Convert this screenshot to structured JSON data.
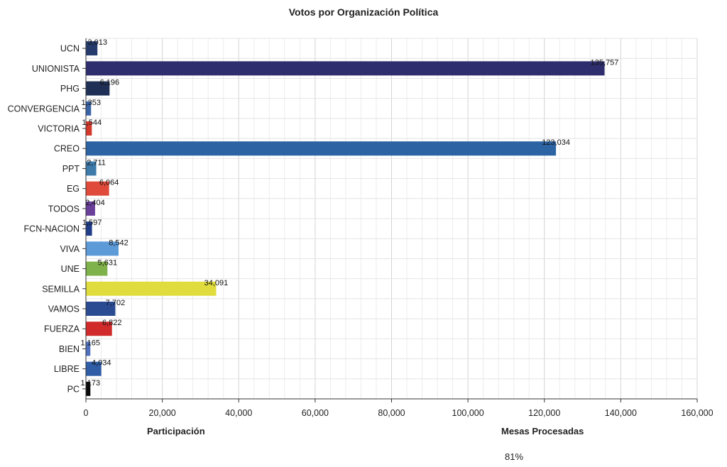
{
  "chart_data": {
    "type": "bar",
    "orientation": "horizontal",
    "title": "Votos por Organización Política",
    "categories": [
      "UCN",
      "UNIONISTA",
      "PHG",
      "CONVERGENCIA",
      "VICTORIA",
      "CREO",
      "PPT",
      "EG",
      "TODOS",
      "FCN-NACION",
      "VIVA",
      "UNE",
      "SEMILLA",
      "VAMOS",
      "FUERZA",
      "BIEN",
      "LIBRE",
      "PC"
    ],
    "values": [
      3013,
      135757,
      6196,
      1353,
      1544,
      123034,
      2711,
      6064,
      2404,
      1597,
      8542,
      5631,
      34091,
      7702,
      6822,
      1165,
      4034,
      1173
    ],
    "value_labels": [
      "3,013",
      "135,757",
      "6,196",
      "1,353",
      "1,544",
      "123,034",
      "2,711",
      "6,064",
      "2,404",
      "1,597",
      "8,542",
      "5,631",
      "34,091",
      "7,702",
      "6,822",
      "1,165",
      "4,034",
      "1,173"
    ],
    "colors": [
      "#243b6b",
      "#2e2e6e",
      "#1f2f55",
      "#3a64a8",
      "#d43a2b",
      "#2c63a3",
      "#3e7bab",
      "#e04a3a",
      "#6a3f9a",
      "#1f3d8a",
      "#5c9ad8",
      "#7fb24a",
      "#e0dc3e",
      "#2a4a92",
      "#d02a2a",
      "#4f6fbf",
      "#2f5ea6",
      "#0a0a0a"
    ],
    "xlim": [
      0,
      160000
    ],
    "x_ticks": [
      0,
      20000,
      40000,
      60000,
      80000,
      100000,
      120000,
      140000,
      160000
    ],
    "x_tick_labels": [
      "0",
      "20,000",
      "40,000",
      "60,000",
      "80,000",
      "100,000",
      "120,000",
      "140,000",
      "160,000"
    ],
    "grid": true
  },
  "footer": {
    "participacion_label": "Participación",
    "mesas_label": "Mesas Procesadas",
    "mesas_value": "81%"
  }
}
